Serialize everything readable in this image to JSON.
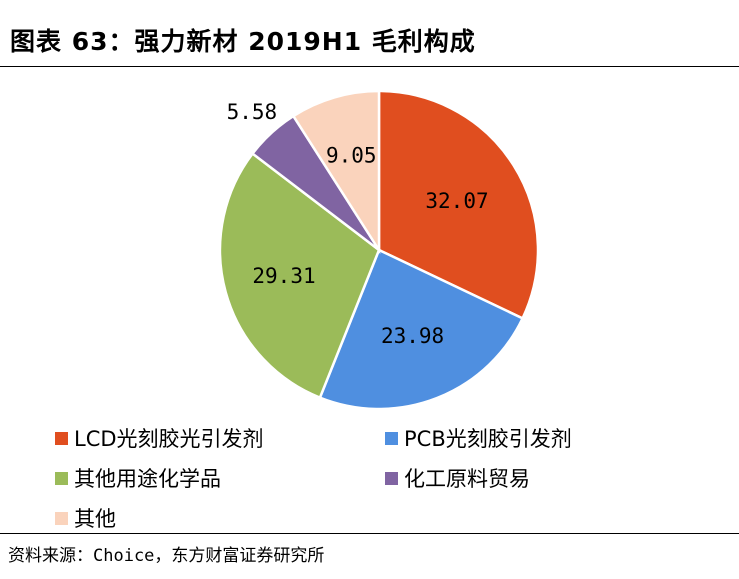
{
  "header": {
    "title": "图表 63：强力新材 2019H1 毛利构成"
  },
  "footer": {
    "source": "资料来源：Choice，东方财富证券研究所"
  },
  "chart_data": {
    "type": "pie",
    "title": "图表 63：强力新材 2019H1 毛利构成",
    "slices": [
      {
        "label": "LCD光刻胶光引发剂",
        "value": 32.07,
        "value_label": "32.07",
        "color": "#E04E1F"
      },
      {
        "label": "PCB光刻胶引发剂",
        "value": 23.98,
        "value_label": "23.98",
        "color": "#4F8FE0"
      },
      {
        "label": "其他用途化学品",
        "value": 29.31,
        "value_label": "29.31",
        "color": "#9BBB59"
      },
      {
        "label": "化工原料贸易",
        "value": 5.58,
        "value_label": "5.58",
        "color": "#8064A2"
      },
      {
        "label": "其他",
        "value": 9.05,
        "value_label": "9.05",
        "color": "#FAD3BC"
      }
    ],
    "legend_position": "bottom"
  }
}
